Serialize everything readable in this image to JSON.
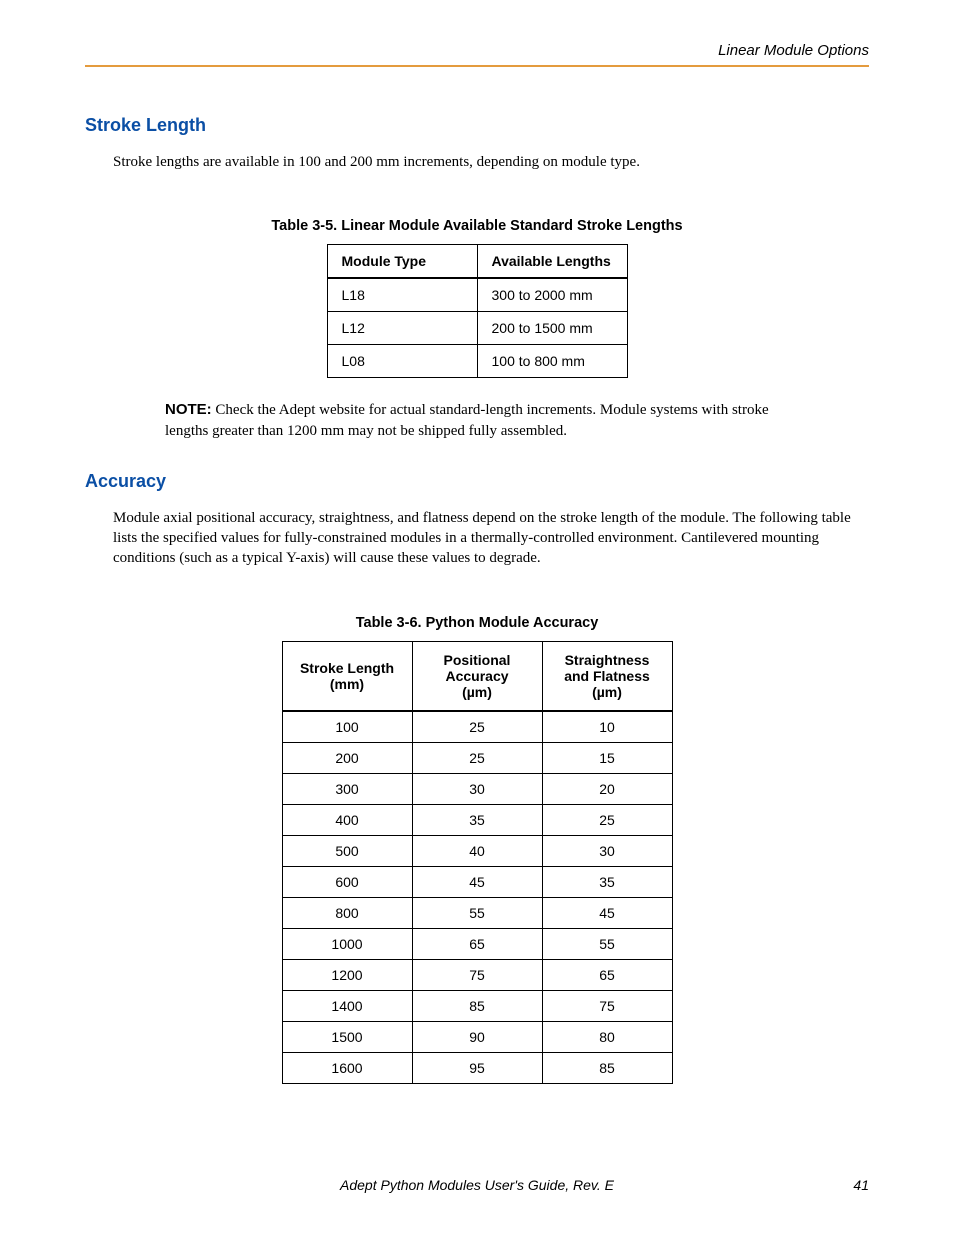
{
  "header": {
    "section": "Linear Module Options"
  },
  "section1": {
    "heading": "Stroke Length",
    "text": "Stroke lengths are available in 100 and 200 mm increments, depending on module type."
  },
  "table1": {
    "caption": "Table 3-5. Linear Module Available Standard Stroke Lengths",
    "columns": [
      "Module Type",
      "Available Lengths"
    ],
    "rows": [
      [
        "L18",
        "300 to 2000 mm"
      ],
      [
        "L12",
        "200 to 1500 mm"
      ],
      [
        "L08",
        "100 to 800 mm"
      ]
    ]
  },
  "note": {
    "label": "NOTE:",
    "text": "Check the Adept website for actual standard-length increments. Module systems with stroke lengths greater than 1200 mm may not be shipped fully assembled."
  },
  "section2": {
    "heading": "Accuracy",
    "text": "Module axial positional accuracy, straightness, and flatness depend on the stroke length of the module. The following table lists the specified values for fully-constrained modules in a thermally-controlled environment. Cantilevered mounting conditions (such as a typical Y-axis) will cause these values to degrade."
  },
  "table2": {
    "caption": "Table 3-6. Python Module Accuracy",
    "columns": [
      "Stroke Length (mm)",
      "Positional Accuracy (µm)",
      "Straightness and Flatness (µm)"
    ],
    "col_lines": [
      [
        "Stroke Length",
        "(mm)"
      ],
      [
        "Positional",
        "Accuracy",
        "(µm)"
      ],
      [
        "Straightness",
        "and Flatness",
        "(µm)"
      ]
    ],
    "rows": [
      [
        "100",
        "25",
        "10"
      ],
      [
        "200",
        "25",
        "15"
      ],
      [
        "300",
        "30",
        "20"
      ],
      [
        "400",
        "35",
        "25"
      ],
      [
        "500",
        "40",
        "30"
      ],
      [
        "600",
        "45",
        "35"
      ],
      [
        "800",
        "55",
        "45"
      ],
      [
        "1000",
        "65",
        "55"
      ],
      [
        "1200",
        "75",
        "65"
      ],
      [
        "1400",
        "85",
        "75"
      ],
      [
        "1500",
        "90",
        "80"
      ],
      [
        "1600",
        "95",
        "85"
      ]
    ]
  },
  "footer": {
    "text": "Adept Python Modules User's Guide, Rev. E",
    "page": "41"
  },
  "colors": {
    "heading_blue": "#0b4fa5",
    "header_rule": "#e49b3e",
    "text": "#000000",
    "background": "#ffffff"
  },
  "fonts": {
    "heading": "Arial, Helvetica, sans-serif",
    "body": "Book Antiqua, Palatino, Georgia, serif",
    "table": "Arial, Helvetica, sans-serif"
  }
}
